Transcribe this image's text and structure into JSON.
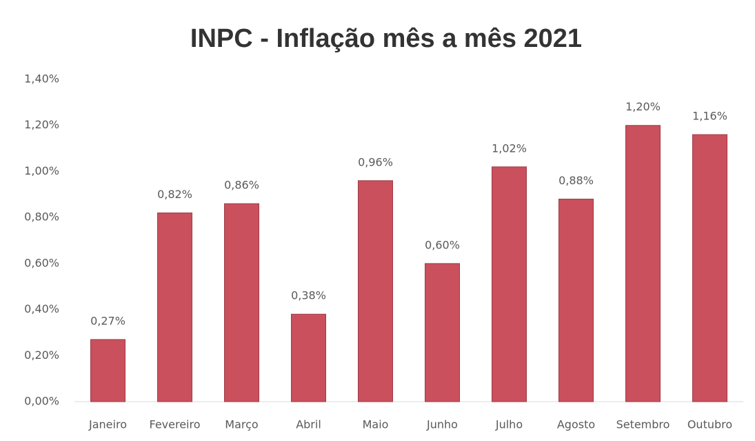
{
  "chart_data": {
    "type": "bar",
    "title": "INPC - Inflação mês a mês 2021",
    "categories": [
      "Janeiro",
      "Fevereiro",
      "Março",
      "Abril",
      "Maio",
      "Junho",
      "Julho",
      "Agosto",
      "Setembro",
      "Outubro"
    ],
    "values": [
      0.27,
      0.82,
      0.86,
      0.38,
      0.96,
      0.6,
      1.02,
      0.88,
      1.2,
      1.16
    ],
    "value_labels": [
      "0,27%",
      "0,82%",
      "0,86%",
      "0,38%",
      "0,96%",
      "0,60%",
      "1,02%",
      "0,88%",
      "1,20%",
      "1,16%"
    ],
    "color": "#c9505c",
    "ylim": [
      0,
      1.4
    ],
    "yticks": [
      {
        "value": 0,
        "label": "0,00%"
      },
      {
        "value": 0.2,
        "label": "0,20%"
      },
      {
        "value": 0.4,
        "label": "0,40%"
      },
      {
        "value": 0.6,
        "label": "0,60%"
      },
      {
        "value": 0.8,
        "label": "0,80%"
      },
      {
        "value": 1.0,
        "label": "1,00%"
      },
      {
        "value": 1.2,
        "label": "1,20%"
      },
      {
        "value": 1.4,
        "label": "1,40%"
      }
    ],
    "grid": false
  }
}
